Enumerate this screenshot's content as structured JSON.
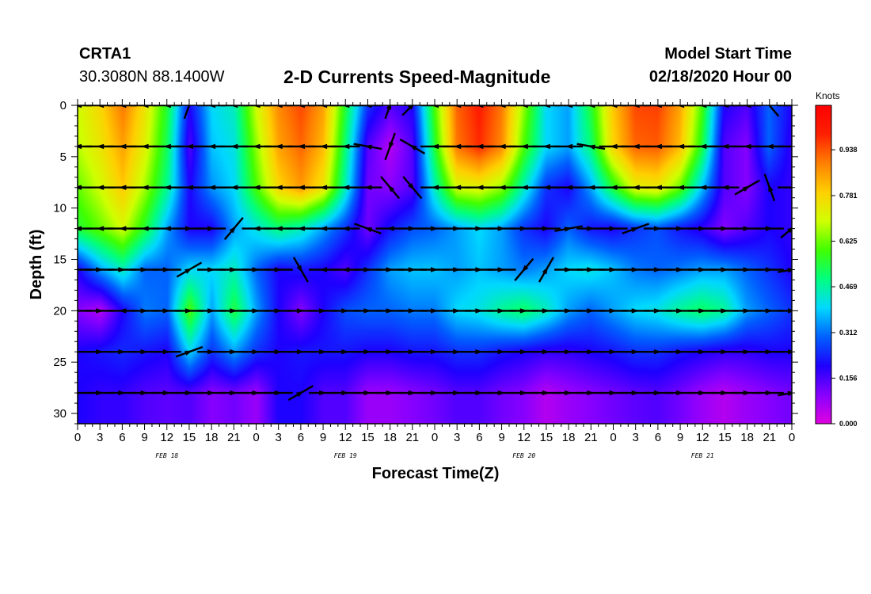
{
  "header": {
    "station": "CRTA1",
    "coords": "30.3080N 88.1400W",
    "title": "2-D Currents Speed-Magnitude",
    "model_start_label": "Model Start Time",
    "model_start_value": "02/18/2020 Hour 00"
  },
  "chart_data": {
    "type": "heatmap",
    "title": "2-D Currents Speed-Magnitude",
    "xlabel": "Forecast Time(Z)",
    "ylabel": "Depth (ft)",
    "x_tick_labels": [
      "0",
      "3",
      "6",
      "9",
      "12",
      "15",
      "18",
      "21",
      "0",
      "3",
      "6",
      "9",
      "12",
      "15",
      "18",
      "21",
      "0",
      "3",
      "6",
      "9",
      "12",
      "15",
      "18",
      "21",
      "0",
      "3",
      "6",
      "9",
      "12",
      "15",
      "18",
      "21",
      "0"
    ],
    "x_range_hours": [
      0,
      96
    ],
    "date_labels": [
      {
        "label": "FEB 18",
        "hour": 12
      },
      {
        "label": "FEB 19",
        "hour": 36
      },
      {
        "label": "FEB 20",
        "hour": 60
      },
      {
        "label": "FEB 21",
        "hour": 84
      }
    ],
    "y_ticks": [
      0,
      5,
      10,
      15,
      20,
      25,
      30
    ],
    "y_range": [
      0,
      31
    ],
    "y_inverted": true,
    "colorbar": {
      "unit": "Knots",
      "tick_labels": [
        "0.000",
        "0.156",
        "0.312",
        "0.469",
        "0.625",
        "0.781",
        "0.938"
      ],
      "range": [
        0,
        1.09
      ],
      "colors": [
        "#e000e0",
        "#8800ff",
        "#1e00ff",
        "#0060ff",
        "#00d8ff",
        "#00ff80",
        "#40ff00",
        "#d0ff00",
        "#ffd000",
        "#ff8000",
        "#ff2000",
        "#ff0000"
      ]
    },
    "depths_ft": [
      0,
      4,
      8,
      12,
      16,
      20,
      24,
      28
    ],
    "hours": [
      0,
      3,
      6,
      9,
      12,
      15,
      18,
      21,
      24,
      27,
      30,
      33,
      36,
      39,
      42,
      45,
      48,
      51,
      54,
      57,
      60,
      63,
      66,
      69,
      72,
      75,
      78,
      81,
      84,
      87,
      90,
      93,
      96
    ],
    "speed_knots": [
      [
        0.7,
        0.78,
        0.9,
        0.75,
        0.55,
        0.2,
        0.4,
        0.45,
        0.7,
        0.88,
        0.95,
        0.85,
        0.55,
        0.25,
        0.15,
        0.2,
        0.6,
        0.92,
        1.0,
        0.9,
        0.65,
        0.4,
        0.35,
        0.55,
        0.8,
        0.95,
        0.96,
        0.85,
        0.6,
        0.2,
        0.15,
        0.3,
        0.2
      ],
      [
        0.68,
        0.75,
        0.85,
        0.72,
        0.52,
        0.15,
        0.38,
        0.42,
        0.65,
        0.85,
        0.92,
        0.82,
        0.5,
        0.15,
        0.05,
        0.15,
        0.55,
        0.9,
        0.98,
        0.88,
        0.6,
        0.4,
        0.35,
        0.5,
        0.78,
        0.92,
        0.93,
        0.82,
        0.55,
        0.15,
        0.1,
        0.3,
        0.18
      ],
      [
        0.62,
        0.7,
        0.8,
        0.66,
        0.48,
        0.2,
        0.34,
        0.4,
        0.6,
        0.78,
        0.86,
        0.75,
        0.45,
        0.12,
        0.1,
        0.15,
        0.45,
        0.7,
        0.72,
        0.65,
        0.45,
        0.25,
        0.2,
        0.35,
        0.55,
        0.72,
        0.74,
        0.62,
        0.38,
        0.15,
        0.1,
        0.2,
        0.18
      ],
      [
        0.55,
        0.62,
        0.7,
        0.55,
        0.35,
        0.2,
        0.2,
        0.35,
        0.42,
        0.5,
        0.45,
        0.35,
        0.25,
        0.12,
        0.22,
        0.28,
        0.3,
        0.35,
        0.4,
        0.35,
        0.25,
        0.2,
        0.3,
        0.22,
        0.2,
        0.25,
        0.28,
        0.22,
        0.18,
        0.1,
        0.15,
        0.2,
        0.18
      ],
      [
        0.2,
        0.35,
        0.45,
        0.3,
        0.3,
        0.4,
        0.4,
        0.45,
        0.3,
        0.2,
        0.22,
        0.2,
        0.15,
        0.25,
        0.35,
        0.38,
        0.38,
        0.35,
        0.38,
        0.35,
        0.32,
        0.35,
        0.4,
        0.42,
        0.38,
        0.32,
        0.3,
        0.32,
        0.35,
        0.35,
        0.3,
        0.25,
        0.2
      ],
      [
        0.1,
        0.05,
        0.2,
        0.32,
        0.3,
        0.6,
        0.35,
        0.55,
        0.35,
        0.2,
        0.1,
        0.2,
        0.28,
        0.3,
        0.3,
        0.32,
        0.32,
        0.4,
        0.42,
        0.48,
        0.52,
        0.45,
        0.35,
        0.3,
        0.35,
        0.4,
        0.42,
        0.48,
        0.52,
        0.48,
        0.35,
        0.3,
        0.25
      ],
      [
        0.2,
        0.22,
        0.24,
        0.22,
        0.2,
        0.4,
        0.25,
        0.35,
        0.25,
        0.2,
        0.22,
        0.22,
        0.22,
        0.2,
        0.2,
        0.22,
        0.22,
        0.25,
        0.25,
        0.22,
        0.2,
        0.18,
        0.18,
        0.2,
        0.22,
        0.25,
        0.25,
        0.22,
        0.2,
        0.18,
        0.18,
        0.2,
        0.2
      ],
      [
        0.2,
        0.18,
        0.18,
        0.15,
        0.14,
        0.15,
        0.1,
        0.12,
        0.08,
        0.2,
        0.2,
        0.15,
        0.15,
        0.08,
        0.08,
        0.1,
        0.12,
        0.15,
        0.15,
        0.12,
        0.1,
        0.05,
        0.08,
        0.1,
        0.12,
        0.14,
        0.15,
        0.12,
        0.08,
        0.05,
        0.08,
        0.1,
        0.12
      ]
    ],
    "direction_deg": [
      [
        270,
        270,
        270,
        270,
        270,
        200,
        270,
        270,
        270,
        270,
        270,
        270,
        270,
        270,
        20,
        45,
        270,
        270,
        270,
        270,
        270,
        270,
        270,
        270,
        270,
        270,
        270,
        270,
        270,
        270,
        270,
        140,
        270
      ],
      [
        270,
        270,
        270,
        270,
        270,
        270,
        270,
        270,
        270,
        270,
        270,
        270,
        270,
        280,
        200,
        300,
        270,
        270,
        270,
        270,
        270,
        270,
        270,
        280,
        270,
        270,
        270,
        270,
        270,
        270,
        270,
        270,
        270
      ],
      [
        270,
        270,
        270,
        270,
        270,
        270,
        270,
        270,
        270,
        270,
        270,
        270,
        270,
        270,
        320,
        140,
        270,
        270,
        270,
        270,
        270,
        270,
        270,
        270,
        270,
        270,
        270,
        270,
        270,
        270,
        60,
        340,
        270
      ],
      [
        270,
        270,
        270,
        270,
        270,
        90,
        90,
        40,
        270,
        270,
        270,
        270,
        270,
        290,
        270,
        90,
        90,
        90,
        90,
        90,
        90,
        90,
        80,
        90,
        90,
        70,
        90,
        90,
        90,
        90,
        90,
        90,
        50
      ],
      [
        90,
        90,
        90,
        90,
        90,
        60,
        90,
        90,
        90,
        90,
        150,
        270,
        270,
        90,
        90,
        90,
        90,
        90,
        90,
        90,
        220,
        30,
        90,
        90,
        90,
        90,
        90,
        90,
        90,
        90,
        90,
        90,
        80
      ],
      [
        90,
        90,
        270,
        90,
        90,
        90,
        90,
        90,
        90,
        90,
        90,
        90,
        90,
        90,
        90,
        90,
        90,
        90,
        90,
        90,
        90,
        90,
        90,
        90,
        90,
        90,
        90,
        90,
        90,
        90,
        90,
        90,
        90
      ],
      [
        90,
        90,
        90,
        90,
        90,
        70,
        90,
        90,
        90,
        90,
        90,
        90,
        90,
        90,
        90,
        90,
        90,
        90,
        90,
        90,
        90,
        90,
        90,
        90,
        90,
        90,
        90,
        90,
        90,
        90,
        90,
        90,
        90
      ],
      [
        90,
        90,
        90,
        90,
        90,
        90,
        90,
        90,
        90,
        90,
        60,
        90,
        90,
        90,
        90,
        90,
        90,
        90,
        90,
        90,
        90,
        90,
        90,
        90,
        90,
        90,
        90,
        90,
        90,
        90,
        90,
        90,
        80
      ]
    ]
  }
}
